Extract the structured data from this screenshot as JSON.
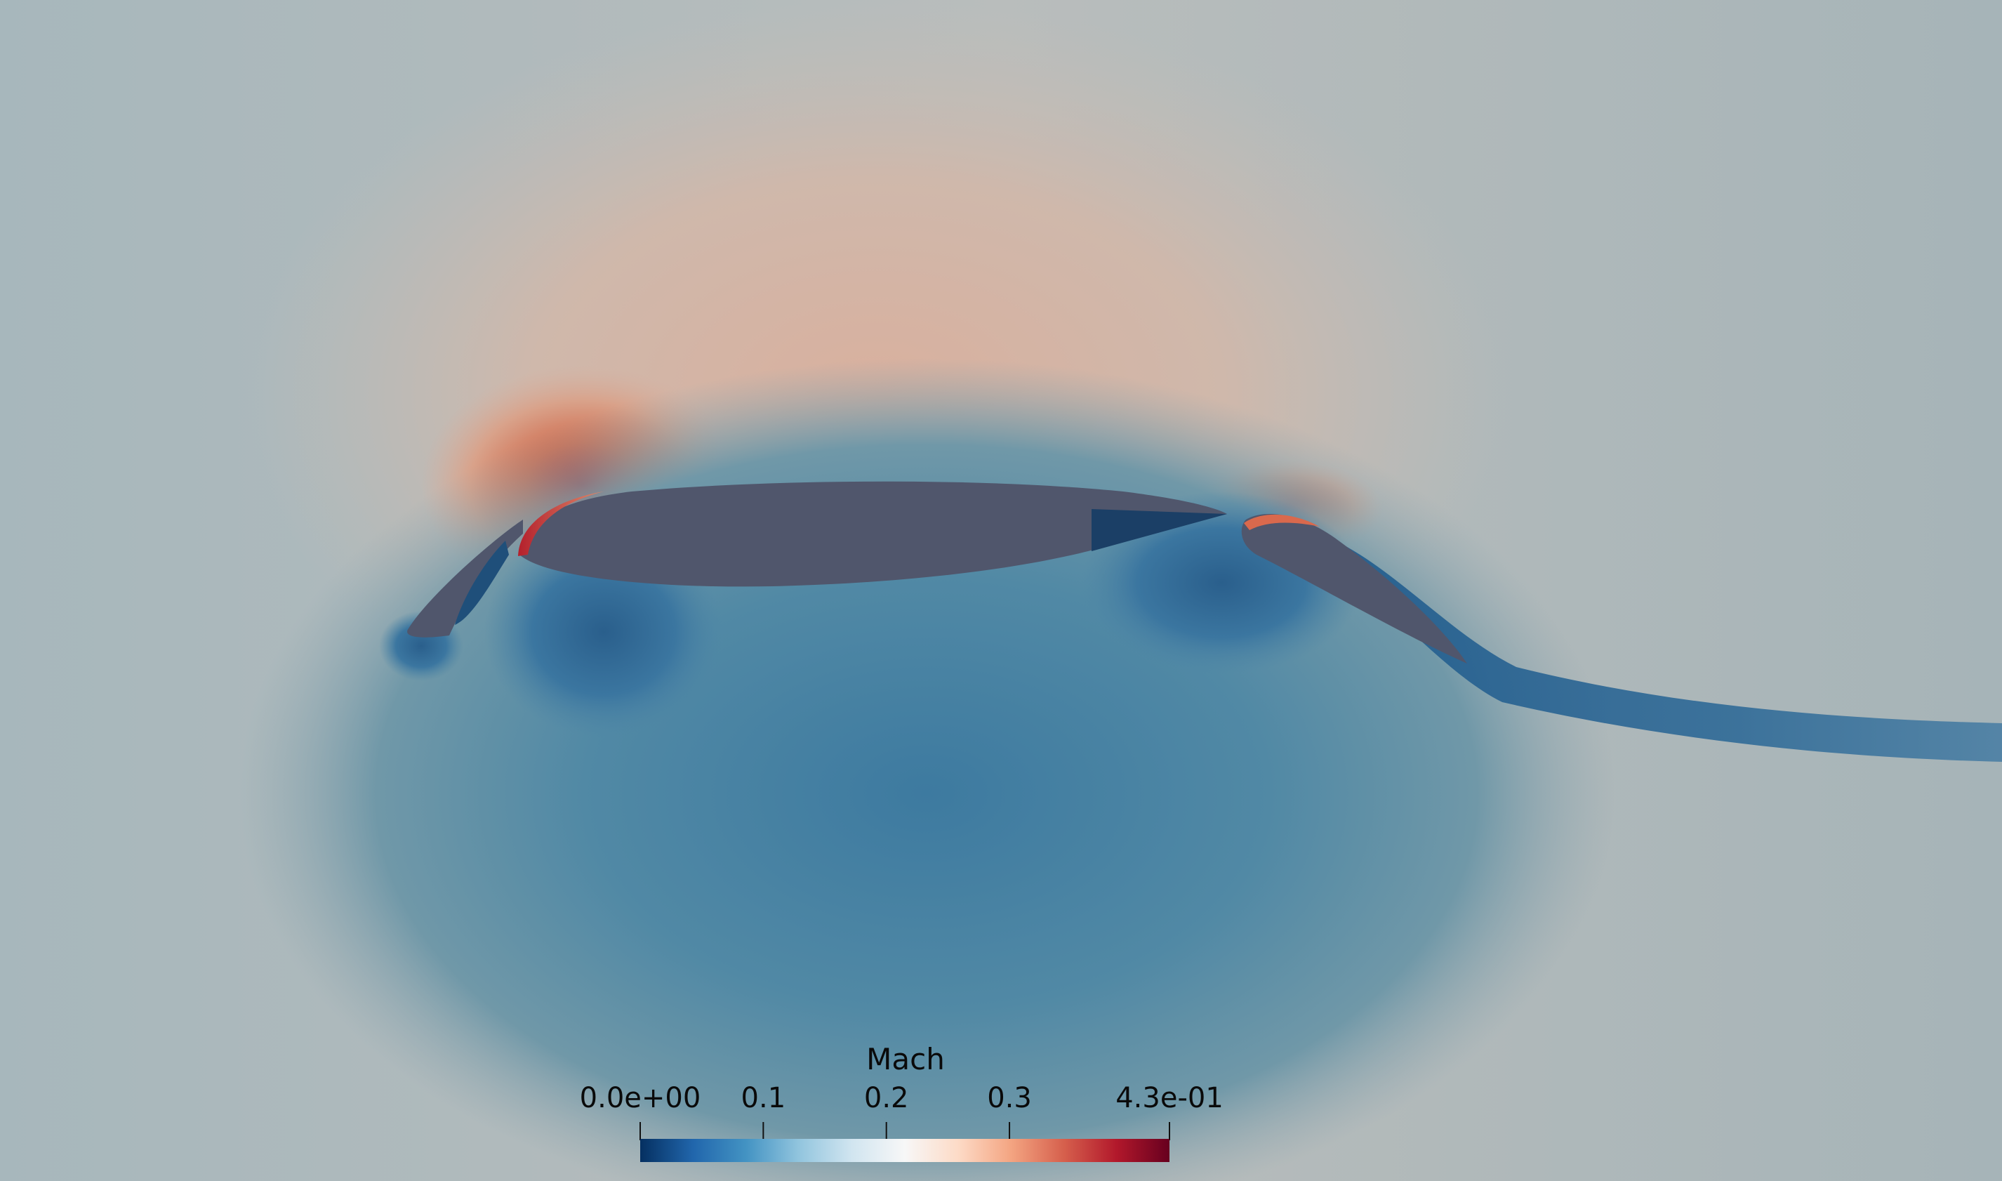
{
  "colorbar": {
    "title": "Mach",
    "range": [
      0.0,
      0.43
    ],
    "colors": [
      "#053061",
      "#2166ac",
      "#4393c3",
      "#92c5de",
      "#d1e5f0",
      "#f7f7f7",
      "#fddbc7",
      "#f4a582",
      "#d6604d",
      "#b2182b",
      "#67001f"
    ],
    "ticks": [
      {
        "value": 0.0,
        "label": "0.0e+00"
      },
      {
        "value": 0.1,
        "label": "0.1"
      },
      {
        "value": 0.2,
        "label": "0.2"
      },
      {
        "value": 0.3,
        "label": "0.3"
      },
      {
        "value": 0.43,
        "label": "4.3e-01"
      }
    ]
  },
  "palette": {
    "body_fill": "#50566c",
    "freestream": "#a8b7ba",
    "suction": "#c98a72",
    "pressure": "#4f86a3",
    "wake": "#2d6591"
  }
}
